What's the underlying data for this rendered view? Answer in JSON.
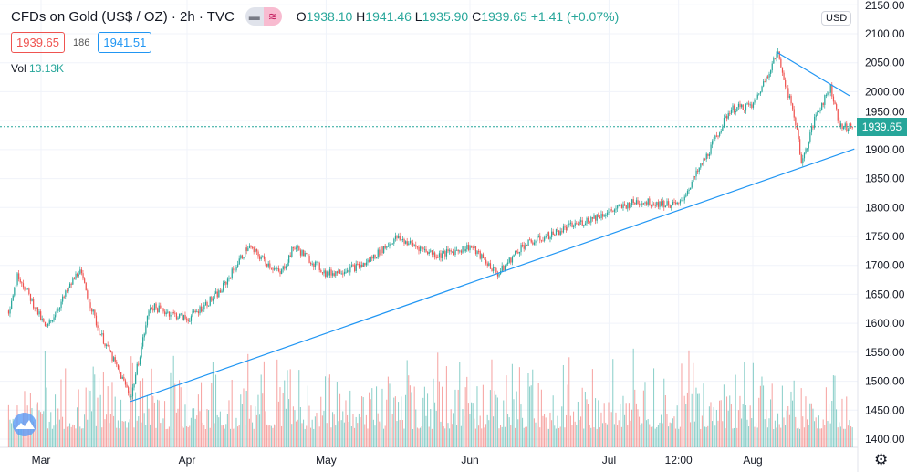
{
  "header": {
    "title": "CFDs on Gold (US$ / OZ) · 2h · TVC",
    "toggle_icons": [
      "minus-icon",
      "approx-icon"
    ],
    "ohlc": {
      "o_label": "O",
      "o": "1938.10",
      "h_label": "H",
      "h": "1941.46",
      "l_label": "L",
      "l": "1935.90",
      "c_label": "C",
      "c": "1939.65",
      "change": "+1.41 (+0.07%)"
    },
    "bid": "1939.65",
    "spread": "186",
    "ask": "1941.51",
    "vol_label": "Vol",
    "vol_value": "13.13K"
  },
  "axis": {
    "currency": "USD",
    "last_price": "1939.65"
  },
  "colors": {
    "up": "#26a69a",
    "down": "#ef5350",
    "trendline": "#2196f3",
    "last_price": "#26a69a"
  },
  "chart_data": {
    "type": "candlestick",
    "interval": "2h",
    "ylim": [
      1400,
      2150
    ],
    "y_ticks": [
      1400,
      1450,
      1500,
      1550,
      1600,
      1650,
      1700,
      1750,
      1800,
      1850,
      1900,
      1950,
      2000,
      2050,
      2100,
      2150
    ],
    "y_tick_labels": [
      "1400.00",
      "1450.00",
      "1500.00",
      "1550.00",
      "1600.00",
      "1650.00",
      "1700.00",
      "1750.00",
      "1800.00",
      "1850.00",
      "1900.00",
      "1950.00",
      "2000.00",
      "2050.00",
      "2100.00",
      "2150.00"
    ],
    "x_ticks": [
      {
        "date": "2020-03-01",
        "label": "Mar"
      },
      {
        "date": "2020-04-01",
        "label": "Apr"
      },
      {
        "date": "2020-05-01",
        "label": "May"
      },
      {
        "date": "2020-06-01",
        "label": "Jun"
      },
      {
        "date": "2020-07-01",
        "label": "Jul"
      },
      {
        "date": "2020-07-16",
        "label": "12:00"
      },
      {
        "date": "2020-08-01",
        "label": "Aug"
      }
    ],
    "price_path": [
      [
        "2020-02-23",
        1622
      ],
      [
        "2020-02-25",
        1685
      ],
      [
        "2020-03-02",
        1590
      ],
      [
        "2020-03-09",
        1693
      ],
      [
        "2020-03-13",
        1591
      ],
      [
        "2020-03-20",
        1473
      ],
      [
        "2020-03-24",
        1630
      ],
      [
        "2020-04-01",
        1607
      ],
      [
        "2020-04-08",
        1654
      ],
      [
        "2020-04-14",
        1733
      ],
      [
        "2020-04-21",
        1685
      ],
      [
        "2020-04-24",
        1733
      ],
      [
        "2020-05-01",
        1685
      ],
      [
        "2020-05-09",
        1701
      ],
      [
        "2020-05-16",
        1748
      ],
      [
        "2020-05-25",
        1717
      ],
      [
        "2020-06-01",
        1733
      ],
      [
        "2020-06-07",
        1685
      ],
      [
        "2020-06-12",
        1733
      ],
      [
        "2020-06-24",
        1772
      ],
      [
        "2020-07-07",
        1811
      ],
      [
        "2020-07-16",
        1804
      ],
      [
        "2020-07-22",
        1890
      ],
      [
        "2020-07-27",
        1969
      ],
      [
        "2020-08-01",
        1977
      ],
      [
        "2020-08-06",
        2068
      ],
      [
        "2020-08-10",
        1938
      ],
      [
        "2020-08-11",
        1875
      ],
      [
        "2020-08-14",
        1961
      ],
      [
        "2020-08-17",
        2008
      ],
      [
        "2020-08-19",
        1938
      ],
      [
        "2020-08-21",
        1940
      ]
    ],
    "trendlines": [
      {
        "from": [
          "2020-03-20",
          1465
        ],
        "to": [
          "2020-08-22",
          1901
        ]
      },
      {
        "from": [
          "2020-08-06",
          2068
        ],
        "to": [
          "2020-08-21",
          1993
        ]
      }
    ],
    "last_price": 1939.65,
    "volume_peak": "13.13K"
  }
}
